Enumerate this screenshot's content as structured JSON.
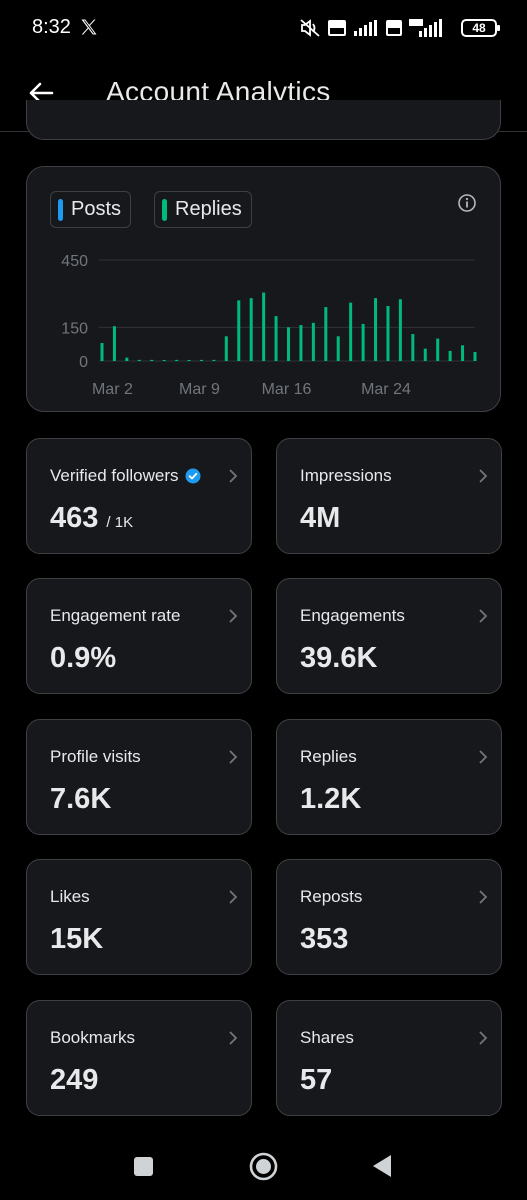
{
  "status_bar": {
    "time": "8:32",
    "battery": "48",
    "icons": [
      "x-logo-icon",
      "mute-icon",
      "volte-icon",
      "signal-icon",
      "vonr-icon",
      "5g-signal-icon",
      "battery-icon"
    ]
  },
  "header": {
    "title": "Account Analytics",
    "back_icon": "arrow-left-icon"
  },
  "chart_legend": {
    "posts_label": "Posts",
    "replies_label": "Replies",
    "posts_color": "#1d9bf0",
    "replies_color": "#00ba7c"
  },
  "chart_data": {
    "type": "bar",
    "categories": [
      "Mar 1",
      "Mar 2",
      "Mar 3",
      "Mar 4",
      "Mar 5",
      "Mar 6",
      "Mar 7",
      "Mar 8",
      "Mar 9",
      "Mar 10",
      "Mar 11",
      "Mar 12",
      "Mar 13",
      "Mar 14",
      "Mar 15",
      "Mar 16",
      "Mar 17",
      "Mar 18",
      "Mar 19",
      "Mar 20",
      "Mar 21",
      "Mar 22",
      "Mar 23",
      "Mar 24",
      "Mar 25",
      "Mar 26",
      "Mar 27",
      "Mar 28",
      "Mar 29",
      "Mar 30",
      "Mar 31"
    ],
    "series": [
      {
        "name": "Replies",
        "values": [
          80,
          155,
          15,
          5,
          5,
          0,
          5,
          0,
          5,
          5,
          110,
          270,
          280,
          305,
          200,
          150,
          160,
          170,
          240,
          110,
          260,
          165,
          280,
          245,
          275,
          120,
          55,
          100,
          45,
          70,
          40
        ]
      }
    ],
    "x_tick_labels": [
      "Mar 2",
      "Mar 9",
      "Mar 16",
      "Mar 24"
    ],
    "y_tick_labels": [
      "450",
      "150",
      "0"
    ],
    "ylim": [
      0,
      450
    ],
    "grid": true,
    "legend": "top-left",
    "xlabel": "",
    "ylabel": ""
  },
  "stats": [
    {
      "label": "Verified followers",
      "value": "463",
      "sub": "/ 1K",
      "verified": true
    },
    {
      "label": "Impressions",
      "value": "4M"
    },
    {
      "label": "Engagement rate",
      "value": "0.9%"
    },
    {
      "label": "Engagements",
      "value": "39.6K"
    },
    {
      "label": "Profile visits",
      "value": "7.6K"
    },
    {
      "label": "Replies",
      "value": "1.2K"
    },
    {
      "label": "Likes",
      "value": "15K"
    },
    {
      "label": "Reposts",
      "value": "353"
    },
    {
      "label": "Bookmarks",
      "value": "249"
    },
    {
      "label": "Shares",
      "value": "57"
    }
  ],
  "nav": {
    "icons": [
      "recents-square-icon",
      "home-circle-icon",
      "back-triangle-icon"
    ]
  }
}
